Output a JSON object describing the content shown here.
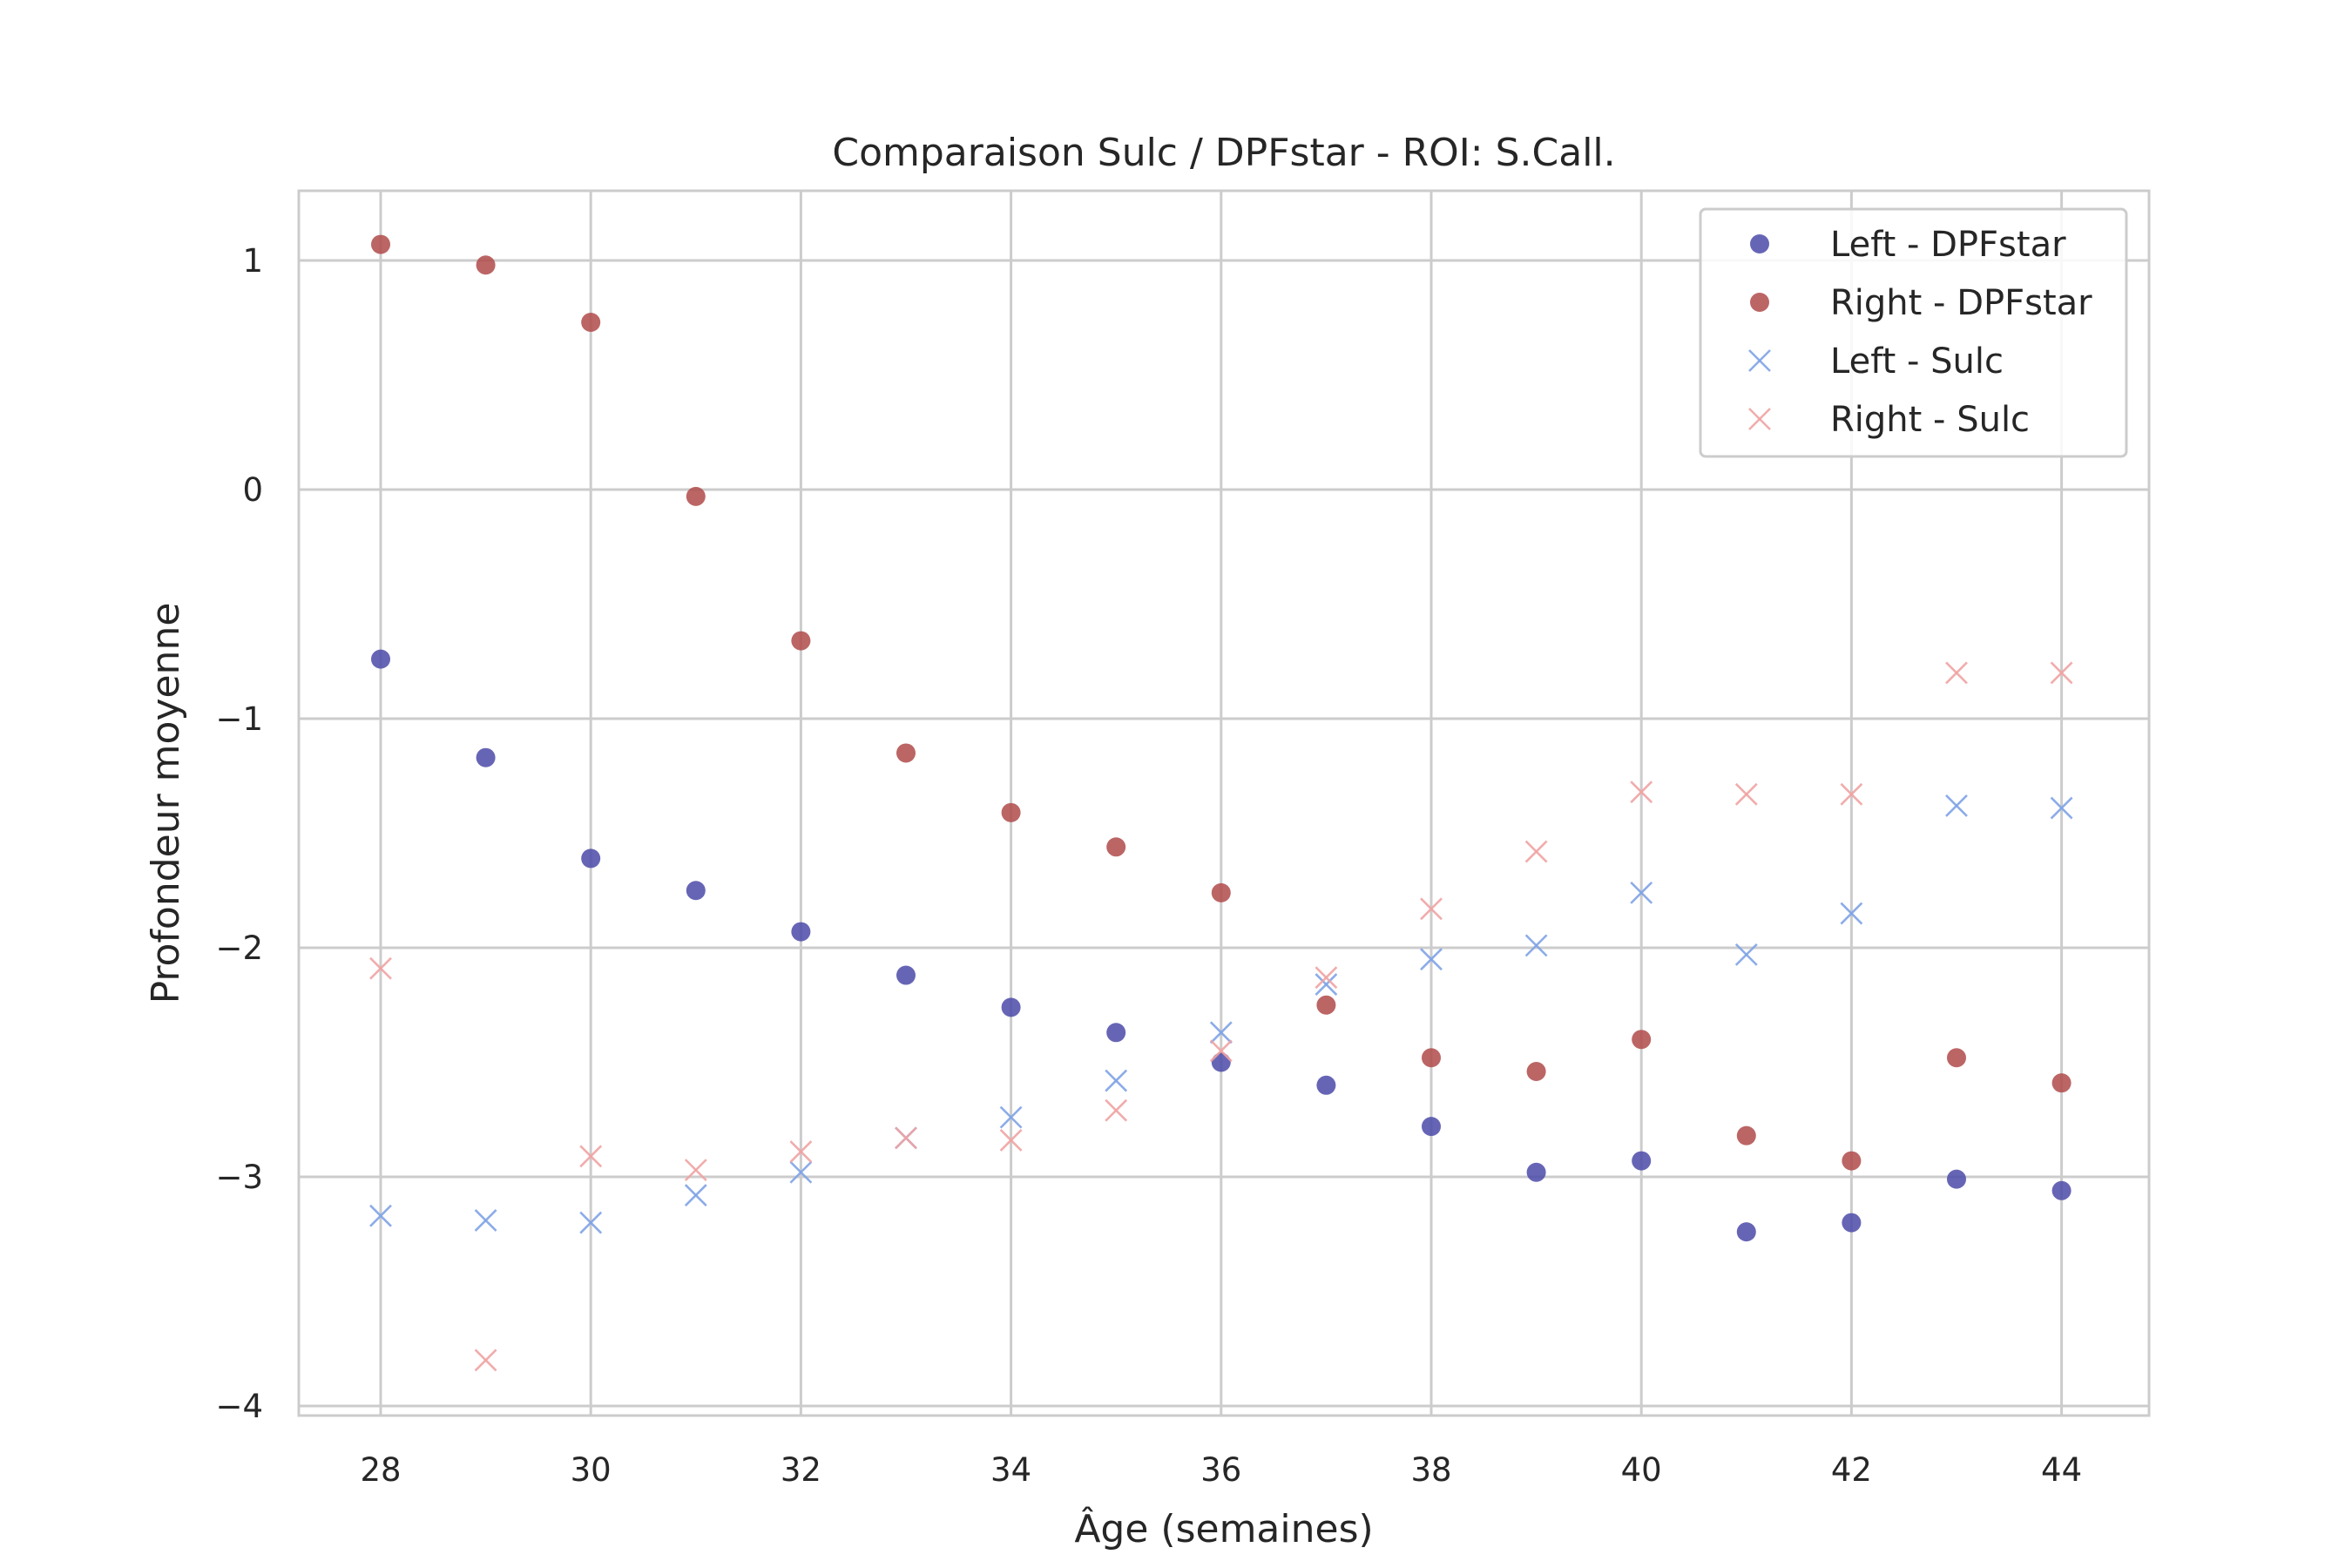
{
  "chart_data": {
    "type": "scatter",
    "title": "Comparaison Sulc / DPFstar - ROI: S.Call.",
    "xlabel": "Âge (semaines)",
    "ylabel": "Profondeur moyenne",
    "xlim": [
      27.2,
      44.8
    ],
    "ylim": [
      -4.02,
      1.3
    ],
    "xticks": [
      28,
      30,
      32,
      34,
      36,
      38,
      40,
      42,
      44
    ],
    "yticks": [
      -4,
      -3,
      -2,
      -1,
      0,
      1
    ],
    "grid": true,
    "legend_position": "top-right",
    "x": [
      28,
      29,
      30,
      31,
      32,
      33,
      34,
      35,
      36,
      37,
      38,
      39,
      40,
      41,
      42,
      43,
      44
    ],
    "series": [
      {
        "name": "Left - DPFstar",
        "marker": "circle",
        "color": "#4b4aa8",
        "values": [
          -0.74,
          -1.17,
          -1.61,
          -1.75,
          -1.93,
          -2.12,
          -2.26,
          -2.37,
          -2.5,
          -2.6,
          -2.78,
          -2.98,
          -2.93,
          -3.24,
          -3.2,
          -3.01,
          -3.06
        ]
      },
      {
        "name": "Right - DPFstar",
        "marker": "circle",
        "color": "#b04a4a",
        "values": [
          1.07,
          0.98,
          0.73,
          -0.03,
          -0.66,
          -1.15,
          -1.41,
          -1.56,
          -1.76,
          -2.25,
          -2.48,
          -2.54,
          -2.4,
          -2.82,
          -2.93,
          -2.48,
          -2.59
        ]
      },
      {
        "name": "Left - Sulc",
        "marker": "x",
        "color": "#7fa3e6",
        "values": [
          -3.17,
          -3.19,
          -3.2,
          -3.08,
          -2.98,
          -2.83,
          -2.74,
          -2.58,
          -2.37,
          -2.16,
          -2.05,
          -1.99,
          -1.76,
          -2.03,
          -1.85,
          -1.38,
          -1.39
        ]
      },
      {
        "name": "Right - Sulc",
        "marker": "x",
        "color": "#f0a3a3",
        "values": [
          -2.09,
          -3.8,
          -2.91,
          -2.97,
          -2.89,
          -2.83,
          -2.84,
          -2.71,
          -2.45,
          -2.13,
          -1.83,
          -1.58,
          -1.32,
          -1.33,
          -1.33,
          -0.8,
          -0.8
        ]
      }
    ]
  }
}
